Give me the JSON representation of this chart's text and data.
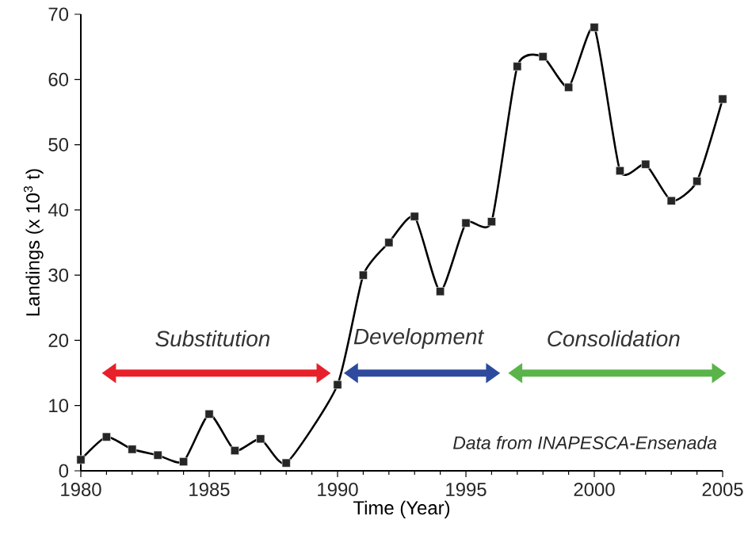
{
  "chart_data": {
    "type": "line",
    "xlabel": "Time (Year)",
    "ylabel": "Landings (x 10$^{3}$ t)",
    "x": [
      1980,
      1981,
      1982,
      1983,
      1984,
      1985,
      1986,
      1987,
      1988,
      1990,
      1991,
      1992,
      1993,
      1994,
      1995,
      1996,
      1997,
      1998,
      1999,
      2000,
      2001,
      2002,
      2003,
      2004,
      2005
    ],
    "values": [
      1.7,
      5.2,
      3.3,
      2.4,
      1.4,
      8.7,
      3.1,
      4.9,
      1.2,
      13.2,
      30,
      35,
      39,
      27.5,
      38,
      38.2,
      62,
      63.5,
      58.8,
      68,
      46,
      47,
      41.4,
      44.4,
      57
    ],
    "color": "#000000",
    "marker": "square",
    "xlim": [
      1980,
      2005
    ],
    "ylim": [
      0,
      70
    ],
    "xticks": [
      1980,
      1985,
      1990,
      1995,
      2000,
      2005
    ],
    "yticks": [
      0,
      10,
      20,
      30,
      40,
      50,
      60,
      70
    ],
    "annotations": [
      "Substitution",
      "Development",
      "Consolidation",
      "Data from INAPESCA-Ensenada"
    ]
  }
}
